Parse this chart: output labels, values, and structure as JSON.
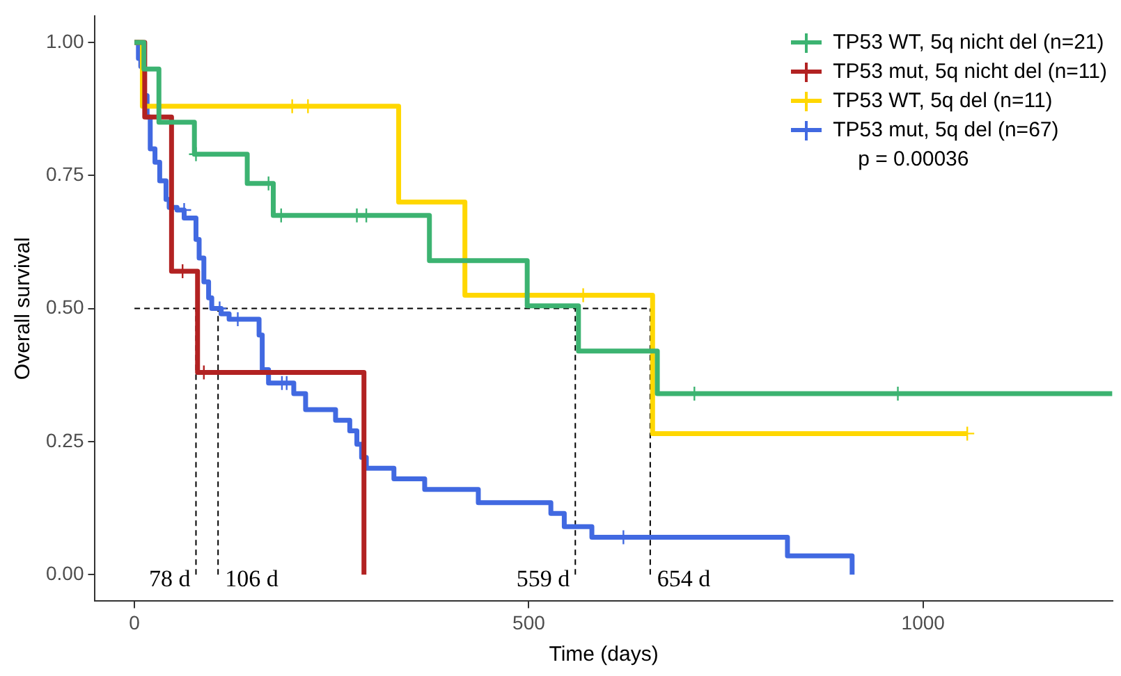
{
  "chart_data": {
    "type": "step",
    "xlabel": "Time (days)",
    "ylabel": "Overall survival",
    "xlim": [
      -50,
      1240
    ],
    "ylim": [
      -0.05,
      1.05
    ],
    "xticks": [
      0,
      500,
      1000
    ],
    "yticks": [
      {
        "value": 0,
        "label": "0.00"
      },
      {
        "value": 0.25,
        "label": "0.25"
      },
      {
        "value": 0.5,
        "label": "0.50"
      },
      {
        "value": 0.75,
        "label": "0.75"
      },
      {
        "value": 1,
        "label": "1.00"
      }
    ],
    "grid": false,
    "legend": "top right",
    "series": [
      {
        "name": "TP53 WT, 5q nicht del (n=21)",
        "color": "#3cb371",
        "x": [
          0,
          12,
          31,
          76,
          143,
          176,
          374,
          498,
          563,
          663,
          1240
        ],
        "values": [
          1,
          0.95,
          0.85,
          0.79,
          0.735,
          0.675,
          0.59,
          0.505,
          0.42,
          0.34,
          0.34
        ]
      },
      {
        "name": "TP53 mut, 5q nicht del (n=11)",
        "color": "#b22222",
        "x": [
          0,
          13,
          47,
          80,
          291
        ],
        "values": [
          1,
          0.86,
          0.57,
          0.38,
          0
        ]
      },
      {
        "name": "TP53 WT, 5q del (n=11)",
        "color": "#ffd700",
        "x": [
          0,
          10,
          335,
          419,
          657,
          1056
        ],
        "values": [
          1,
          0.88,
          0.7,
          0.525,
          0.265,
          0.265
        ]
      },
      {
        "name": "TP53 mut, 5q del (n=67)",
        "color": "#4169e1",
        "x": [
          0,
          5,
          8,
          12,
          16,
          20,
          26,
          32,
          40,
          44,
          54,
          63,
          78,
          82,
          88,
          94,
          98,
          110,
          120,
          158,
          162,
          170,
          202,
          217,
          255,
          273,
          282,
          288,
          294,
          329,
          368,
          436,
          528,
          545,
          580,
          828,
          910
        ],
        "values": [
          1,
          0.97,
          0.955,
          0.9,
          0.86,
          0.8,
          0.775,
          0.74,
          0.705,
          0.69,
          0.685,
          0.67,
          0.63,
          0.595,
          0.55,
          0.52,
          0.5,
          0.49,
          0.48,
          0.45,
          0.385,
          0.36,
          0.34,
          0.31,
          0.29,
          0.27,
          0.245,
          0.22,
          0.2,
          0.18,
          0.16,
          0.135,
          0.115,
          0.09,
          0.07,
          0.035,
          0
        ]
      },
      {
        "color": "#3cb371",
        "type": "scatter",
        "marker": "cross",
        "x": [
          78,
          170,
          186,
          282,
          294,
          710,
          968
        ],
        "values": [
          0.79,
          0.735,
          0.675,
          0.675,
          0.675,
          0.34,
          0.34
        ]
      },
      {
        "color": "#b22222",
        "type": "scatter",
        "marker": "cross",
        "x": [
          61,
          88
        ],
        "values": [
          0.57,
          0.38
        ]
      },
      {
        "color": "#ffd700",
        "type": "scatter",
        "marker": "cross",
        "x": [
          200,
          220,
          569,
          1056
        ],
        "values": [
          0.88,
          0.88,
          0.525,
          0.265
        ]
      },
      {
        "color": "#4169e1",
        "type": "scatter",
        "marker": "cross",
        "x": [
          63,
          108,
          131,
          187,
          193,
          620
        ],
        "values": [
          0.685,
          0.5,
          0.48,
          0.36,
          0.36,
          0.07
        ]
      },
      {
        "color": "#000000",
        "type": "line",
        "line_style": "dashed",
        "x": [
          0,
          654
        ],
        "values": [
          0.5,
          0.5
        ]
      },
      {
        "color": "#000000",
        "type": "line",
        "line_style": "dashed",
        "x": [
          78,
          78
        ],
        "values": [
          0,
          0.5
        ]
      },
      {
        "color": "#000000",
        "type": "line",
        "line_style": "dashed",
        "x": [
          106,
          106
        ],
        "values": [
          0,
          0.5
        ]
      },
      {
        "color": "#000000",
        "type": "line",
        "line_style": "dashed",
        "x": [
          559,
          559
        ],
        "values": [
          0,
          0.5
        ]
      },
      {
        "color": "#000000",
        "type": "line",
        "line_style": "dashed",
        "x": [
          654,
          654
        ],
        "values": [
          0,
          0.5
        ]
      }
    ],
    "annotations": [
      "p = 0.00036",
      {
        "text": "78 d",
        "x": 78,
        "y": 0
      },
      {
        "text": "106 d",
        "x": 106,
        "y": 0
      },
      {
        "text": "559 d",
        "x": 559,
        "y": 0
      },
      {
        "text": "654 d",
        "x": 654,
        "y": 0
      }
    ]
  }
}
